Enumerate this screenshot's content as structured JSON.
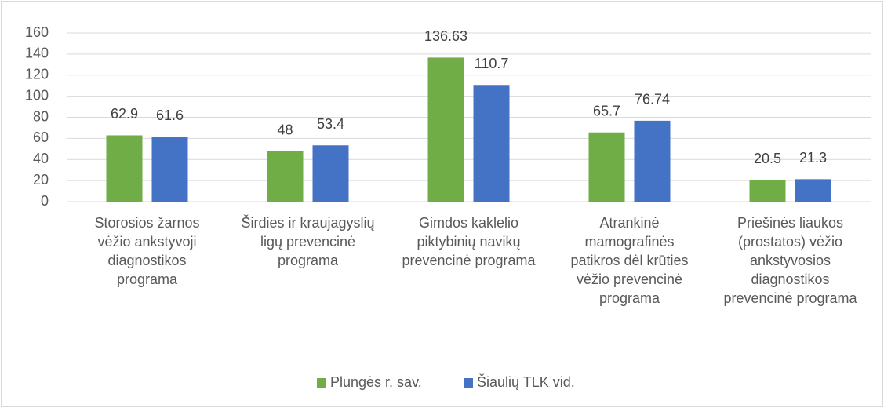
{
  "chart_data": {
    "type": "bar",
    "categories": [
      "Storosios žarnos vėžio ankstyvoji diagnostikos programa",
      "Širdies ir kraujagyslių ligų prevencinė programa",
      "Gimdos kaklelio piktybinių navikų prevencinė programa",
      "Atrankinė mamografinės patikros dėl krūties vėžio prevencinė programa",
      "Priešinės liaukos (prostatos) vėžio ankstyvosios diagnostikos prevencinė programa"
    ],
    "series": [
      {
        "name": "Plungės r. sav.",
        "color": "#70ad47",
        "values": [
          62.9,
          48,
          136.63,
          65.7,
          20.5
        ]
      },
      {
        "name": "Šiaulių TLK vid.",
        "color": "#4472c4",
        "values": [
          61.6,
          53.4,
          110.7,
          76.74,
          21.3
        ]
      }
    ],
    "ylim": [
      0,
      160
    ],
    "yticks": [
      0,
      20,
      40,
      60,
      80,
      100,
      120,
      140,
      160
    ],
    "grid": true,
    "legend": "bottom"
  }
}
